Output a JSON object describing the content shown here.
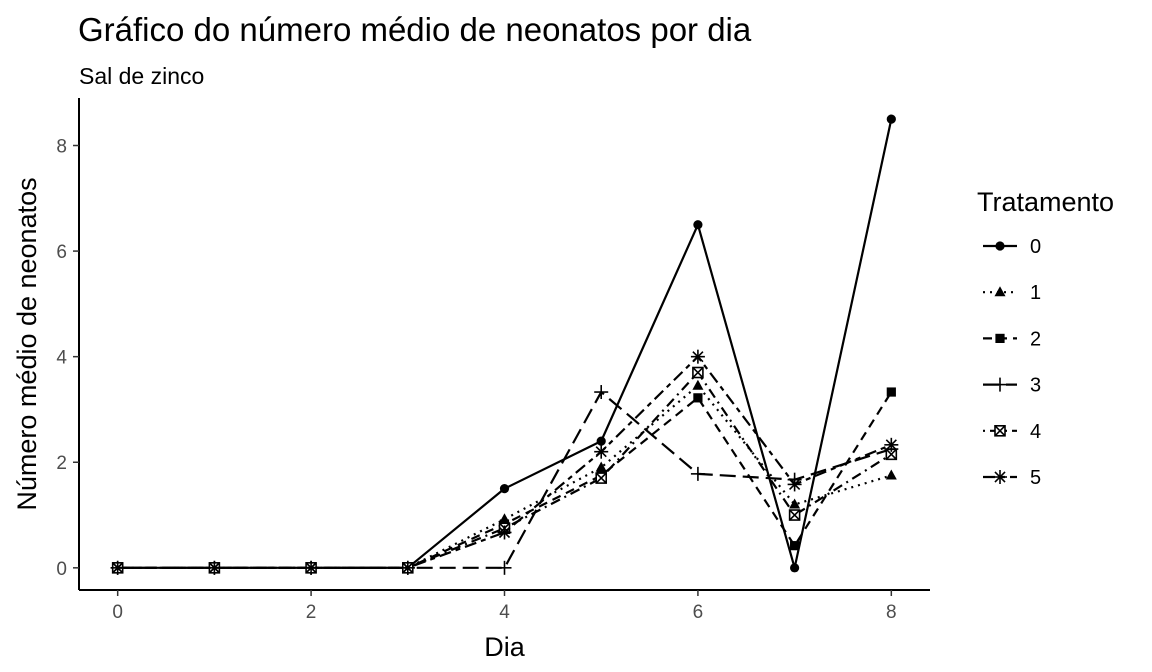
{
  "title": "Gráfico do número médio de neonatos por dia",
  "subtitle": "Sal de zinco",
  "chart_data": {
    "type": "line",
    "xlabel": "Dia",
    "ylabel": "Número médio de neonatos",
    "x": [
      0,
      1,
      2,
      3,
      4,
      5,
      6,
      7,
      8
    ],
    "xlim": [
      -0.4,
      8.4
    ],
    "ylim": [
      -0.42,
      8.9
    ],
    "xticks": [
      0,
      2,
      4,
      6,
      8
    ],
    "yticks": [
      0,
      2,
      4,
      6,
      8
    ],
    "grid": false,
    "legend": {
      "title": "Tratamento",
      "position": "right"
    },
    "series": [
      {
        "name": "0",
        "marker": "circle",
        "linetype": "solid",
        "values": [
          0,
          0,
          0,
          0,
          1.5,
          2.4,
          6.5,
          0,
          8.5
        ]
      },
      {
        "name": "1",
        "marker": "triangle",
        "linetype": "dotted",
        "values": [
          0,
          0,
          0,
          0,
          0.92,
          1.9,
          3.45,
          1.2,
          1.75
        ]
      },
      {
        "name": "2",
        "marker": "square",
        "linetype": "dashed",
        "values": [
          0,
          0,
          0,
          0,
          0.83,
          1.75,
          3.22,
          0.42,
          3.33
        ]
      },
      {
        "name": "3",
        "marker": "plus",
        "linetype": "longdash",
        "values": [
          0,
          0,
          0,
          0,
          0,
          3.33,
          1.78,
          1.67,
          2.25
        ]
      },
      {
        "name": "4",
        "marker": "square-x",
        "linetype": "dotdash",
        "values": [
          0,
          0,
          0,
          0,
          0.75,
          1.7,
          3.7,
          1.0,
          2.15
        ]
      },
      {
        "name": "5",
        "marker": "asterisk",
        "linetype": "twodash",
        "values": [
          0,
          0,
          0,
          0,
          0.67,
          2.2,
          4.0,
          1.58,
          2.33
        ]
      }
    ]
  }
}
